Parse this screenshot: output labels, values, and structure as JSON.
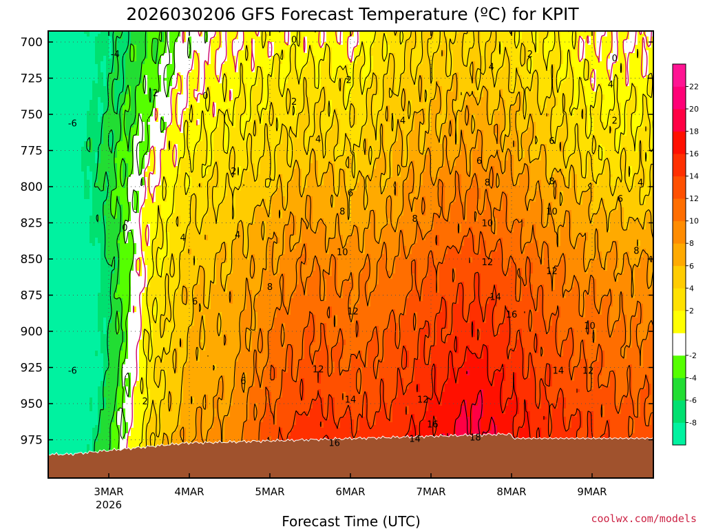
{
  "chart_data": {
    "type": "heatmap",
    "title": "2026030206 GFS Forecast Temperature (ºC) for KPIT",
    "xlabel": "Forecast Time (UTC)",
    "ylabel": "",
    "y_levels_hpa": [
      700,
      725,
      750,
      775,
      800,
      825,
      850,
      875,
      900,
      925,
      950,
      975
    ],
    "y_tick_labels": [
      "700",
      "725",
      "750",
      "775",
      "800",
      "825",
      "850",
      "875",
      "900",
      "925",
      "950",
      "975"
    ],
    "ylim_hpa": [
      700,
      990
    ],
    "y_scale": "pressure (reversed)",
    "x_days": [
      "3MAR",
      "4MAR",
      "5MAR",
      "6MAR",
      "7MAR",
      "8MAR",
      "9MAR"
    ],
    "x_year_label": "2026",
    "grid": true,
    "units": "ºC",
    "colorbar": {
      "levels": [
        -10,
        -8,
        -6,
        -4,
        -2,
        0,
        2,
        4,
        6,
        8,
        10,
        12,
        14,
        16,
        18,
        20,
        22,
        24
      ],
      "tick_labels": [
        "-8",
        "-6",
        "-4",
        "-2",
        "2",
        "4",
        "6",
        "8",
        "10",
        "12",
        "14",
        "16",
        "18",
        "20",
        "22"
      ],
      "colors": [
        "#00f2a0",
        "#00e070",
        "#22dd33",
        "#55ff00",
        "#ffffff",
        "#ffff00",
        "#ffe100",
        "#ffcc00",
        "#ffaa00",
        "#ff8c00",
        "#ff6e00",
        "#ff5000",
        "#ff3000",
        "#ff1000",
        "#ff0044",
        "#ff0077",
        "#ff1493"
      ]
    },
    "temperature_grid": {
      "x_positions_days": [
        0,
        0.5,
        1,
        1.5,
        2,
        2.5,
        3,
        3.5,
        4,
        4.5,
        5,
        5.5,
        6,
        6.5
      ],
      "rows": [
        {
          "p": 700,
          "t": [
            -7,
            -4,
            -1,
            0,
            1,
            1,
            0,
            3,
            4,
            4,
            3,
            2,
            0,
            0
          ]
        },
        {
          "p": 725,
          "t": [
            -7,
            -3,
            0,
            1,
            2,
            3,
            2,
            4,
            5,
            5,
            4,
            3,
            1,
            1
          ]
        },
        {
          "p": 750,
          "t": [
            -6,
            -2,
            1,
            2,
            3,
            4,
            3,
            5,
            6,
            7,
            6,
            4,
            2,
            2
          ]
        },
        {
          "p": 775,
          "t": [
            -5,
            -1,
            2,
            3,
            4,
            5,
            4,
            6,
            7,
            8,
            7,
            5,
            3,
            3
          ]
        },
        {
          "p": 800,
          "t": [
            -5,
            0,
            3,
            4,
            5,
            7,
            6,
            7,
            9,
            10,
            9,
            7,
            5,
            4
          ]
        },
        {
          "p": 825,
          "t": [
            -5,
            1,
            4,
            5,
            7,
            8,
            7,
            8,
            10,
            11,
            10,
            8,
            7,
            6
          ]
        },
        {
          "p": 850,
          "t": [
            -6,
            1,
            5,
            6,
            8,
            10,
            9,
            10,
            12,
            13,
            12,
            10,
            8,
            8
          ]
        },
        {
          "p": 875,
          "t": [
            -6,
            2,
            6,
            7,
            9,
            11,
            10,
            11,
            13,
            14,
            13,
            11,
            10,
            9
          ]
        },
        {
          "p": 900,
          "t": [
            -6,
            2,
            6,
            7,
            10,
            12,
            11,
            12,
            14,
            15,
            14,
            12,
            11,
            10
          ]
        },
        {
          "p": 925,
          "t": [
            -6,
            3,
            7,
            7,
            11,
            13,
            12,
            13,
            15,
            17,
            15,
            13,
            12,
            11
          ]
        },
        {
          "p": 950,
          "t": [
            -5,
            3,
            7,
            8,
            12,
            14,
            13,
            14,
            16,
            18,
            16,
            14,
            13,
            12
          ]
        },
        {
          "p": 975,
          "t": [
            -4,
            4,
            8,
            9,
            13,
            16,
            15,
            15,
            17,
            19,
            17,
            15,
            14,
            13
          ]
        }
      ]
    },
    "contour_labels": [
      {
        "text": "0",
        "day": 2.3,
        "p": 698
      },
      {
        "text": "-4",
        "day": 0.08,
        "p": 708
      },
      {
        "text": "2",
        "day": 5.23,
        "p": 708
      },
      {
        "text": "0",
        "day": 6.28,
        "p": 711
      },
      {
        "text": "4",
        "day": 4.75,
        "p": 717
      },
      {
        "text": "2",
        "day": 2.98,
        "p": 726
      },
      {
        "text": "4",
        "day": 6.23,
        "p": 729
      },
      {
        "text": "2",
        "day": 0.58,
        "p": 735
      },
      {
        "text": "0",
        "day": 1.2,
        "p": 737
      },
      {
        "text": "2",
        "day": 2.3,
        "p": 741
      },
      {
        "text": "2",
        "day": 6.28,
        "p": 754
      },
      {
        "text": "-6",
        "day": -0.45,
        "p": 756
      },
      {
        "text": "4",
        "day": 3.65,
        "p": 754
      },
      {
        "text": "4",
        "day": 2.6,
        "p": 767
      },
      {
        "text": "6",
        "day": 5.5,
        "p": 768
      },
      {
        "text": "6",
        "day": 4.6,
        "p": 782
      },
      {
        "text": "2",
        "day": 1.55,
        "p": 789
      },
      {
        "text": "8",
        "day": 4.7,
        "p": 797
      },
      {
        "text": "8",
        "day": 5.5,
        "p": 796
      },
      {
        "text": "4",
        "day": 6.6,
        "p": 797
      },
      {
        "text": "6",
        "day": 3.0,
        "p": 804
      },
      {
        "text": "6",
        "day": 6.35,
        "p": 808
      },
      {
        "text": "8",
        "day": 2.9,
        "p": 817
      },
      {
        "text": "10",
        "day": 5.5,
        "p": 817
      },
      {
        "text": "8",
        "day": 3.8,
        "p": 822
      },
      {
        "text": "10",
        "day": 4.7,
        "p": 825
      },
      {
        "text": "0",
        "day": 0.2,
        "p": 828
      },
      {
        "text": "4",
        "day": 0.92,
        "p": 835
      },
      {
        "text": "4",
        "day": 1.6,
        "p": 833
      },
      {
        "text": "8",
        "day": 6.55,
        "p": 844
      },
      {
        "text": "10",
        "day": 2.9,
        "p": 845
      },
      {
        "text": "12",
        "day": 4.7,
        "p": 852
      },
      {
        "text": "12",
        "day": 5.5,
        "p": 858
      },
      {
        "text": "8",
        "day": 2.0,
        "p": 869
      },
      {
        "text": "14",
        "day": 4.8,
        "p": 876
      },
      {
        "text": "6",
        "day": 1.07,
        "p": 879
      },
      {
        "text": "12",
        "day": 3.03,
        "p": 886
      },
      {
        "text": "16",
        "day": 5.0,
        "p": 888
      },
      {
        "text": "10",
        "day": 5.97,
        "p": 896
      },
      {
        "text": "12",
        "day": 2.6,
        "p": 926
      },
      {
        "text": "14",
        "day": 5.58,
        "p": 927
      },
      {
        "text": "12",
        "day": 5.95,
        "p": 927
      },
      {
        "text": "-6",
        "day": -0.45,
        "p": 927
      },
      {
        "text": "6",
        "day": 1.67,
        "p": 934
      },
      {
        "text": "2",
        "day": 0.45,
        "p": 948
      },
      {
        "text": "14",
        "day": 3.0,
        "p": 947
      },
      {
        "text": "12",
        "day": 3.9,
        "p": 947
      },
      {
        "text": "16",
        "day": 4.02,
        "p": 964
      },
      {
        "text": "14",
        "day": 3.8,
        "p": 974
      },
      {
        "text": "18",
        "day": 4.55,
        "p": 973
      },
      {
        "text": "16",
        "day": 2.8,
        "p": 977
      }
    ]
  },
  "credit": "coolwx.com/models",
  "colors": {
    "terrain": "#a0522d",
    "zero_line": "#cc0066",
    "contour": "#000000",
    "grid": "#555555"
  }
}
